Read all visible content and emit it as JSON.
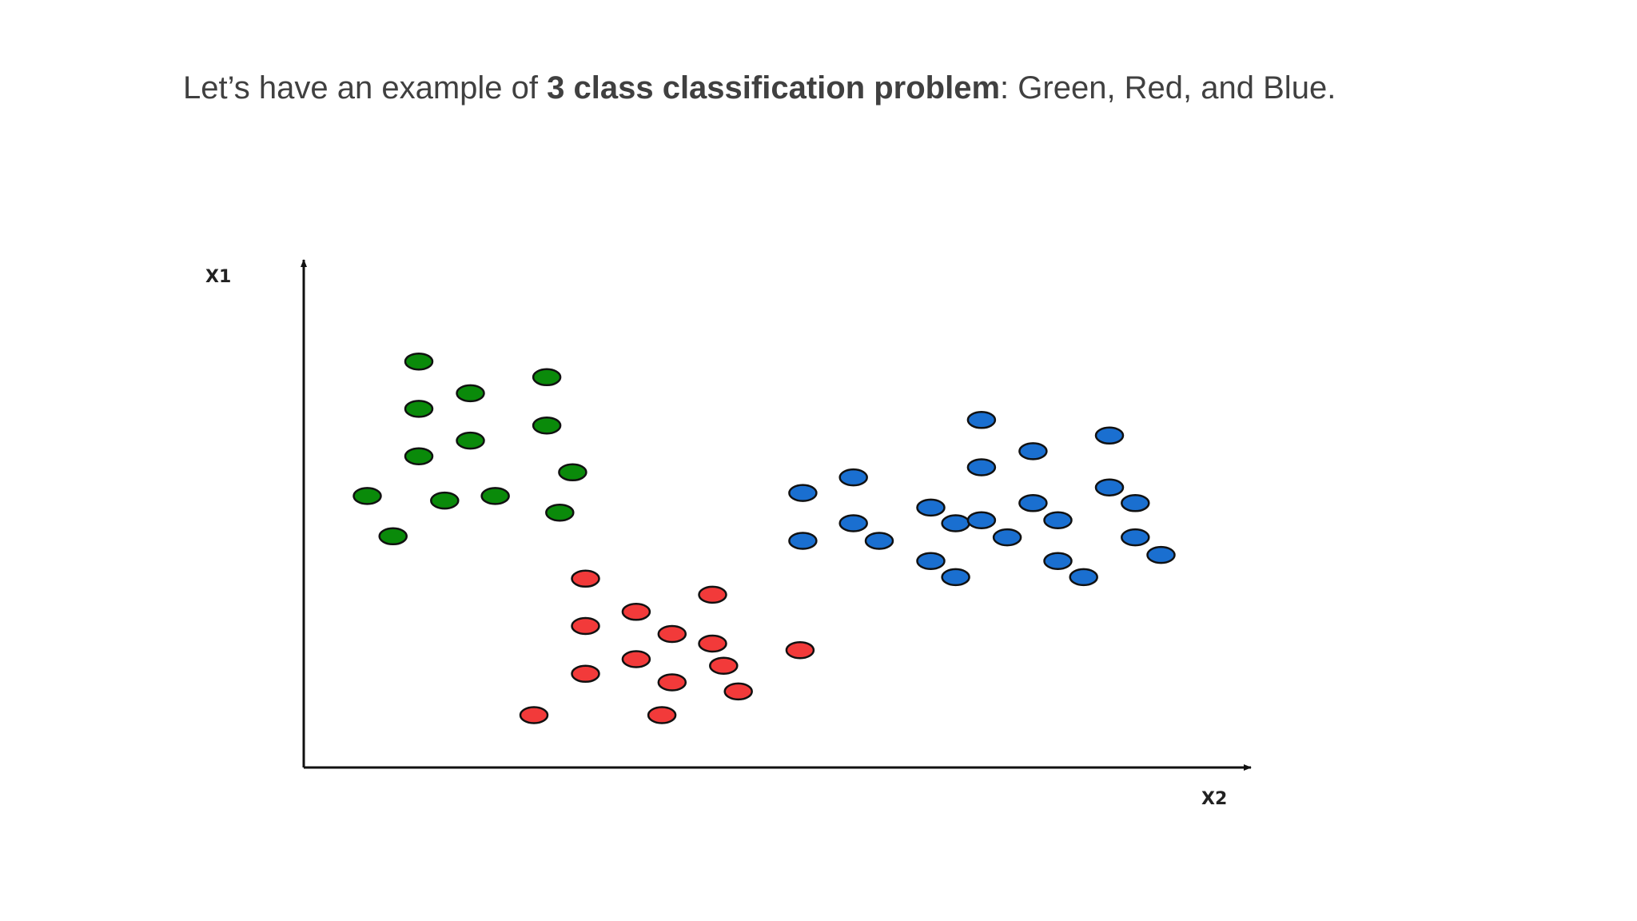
{
  "slide": {
    "text_prefix": "Let’s have an example of ",
    "text_bold": "3 class classification problem",
    "text_suffix": ": Green, Red, and Blue."
  },
  "colors": {
    "green": "#0a8a0a",
    "red": "#f23a3a",
    "blue": "#1a6fd0",
    "outline": "#111111",
    "axis": "#111111",
    "text": "#404040"
  },
  "chart_data": {
    "type": "scatter",
    "xlabel": "X2",
    "ylabel": "X1",
    "xlim": [
      0,
      100
    ],
    "ylim": [
      0,
      100
    ],
    "grid": false,
    "series": [
      {
        "color": "green",
        "points": [
          [
            12.5,
            80.6
          ],
          [
            12.5,
            71.2
          ],
          [
            12.5,
            61.8
          ],
          [
            18.1,
            74.3
          ],
          [
            18.1,
            64.9
          ],
          [
            26.4,
            77.5
          ],
          [
            26.4,
            67.9
          ],
          [
            29.2,
            58.6
          ],
          [
            27.8,
            50.6
          ],
          [
            6.9,
            53.9
          ],
          [
            9.7,
            45.9
          ],
          [
            15.3,
            53.0
          ],
          [
            20.8,
            53.9
          ]
        ]
      },
      {
        "color": "red",
        "points": [
          [
            30.6,
            37.5
          ],
          [
            30.6,
            28.1
          ],
          [
            30.6,
            18.6
          ],
          [
            36.1,
            30.9
          ],
          [
            36.1,
            21.5
          ],
          [
            40.0,
            26.5
          ],
          [
            40.0,
            16.9
          ],
          [
            44.4,
            34.3
          ],
          [
            44.4,
            24.6
          ],
          [
            45.6,
            20.2
          ],
          [
            47.2,
            15.1
          ],
          [
            25.0,
            10.4
          ],
          [
            38.9,
            10.4
          ],
          [
            53.9,
            23.3
          ]
        ]
      },
      {
        "color": "blue",
        "points": [
          [
            54.2,
            54.5
          ],
          [
            54.2,
            45.0
          ],
          [
            59.7,
            57.6
          ],
          [
            59.7,
            48.5
          ],
          [
            62.5,
            45.0
          ],
          [
            68.1,
            51.6
          ],
          [
            68.1,
            41.0
          ],
          [
            70.8,
            48.5
          ],
          [
            70.8,
            37.8
          ],
          [
            73.6,
            69.0
          ],
          [
            73.6,
            59.6
          ],
          [
            73.6,
            49.1
          ],
          [
            76.4,
            45.7
          ],
          [
            79.2,
            62.8
          ],
          [
            79.2,
            52.5
          ],
          [
            81.9,
            49.1
          ],
          [
            81.9,
            41.0
          ],
          [
            84.7,
            37.8
          ],
          [
            87.5,
            65.9
          ],
          [
            87.5,
            55.6
          ],
          [
            90.3,
            52.5
          ],
          [
            90.3,
            45.7
          ],
          [
            93.1,
            42.2
          ]
        ]
      }
    ]
  }
}
